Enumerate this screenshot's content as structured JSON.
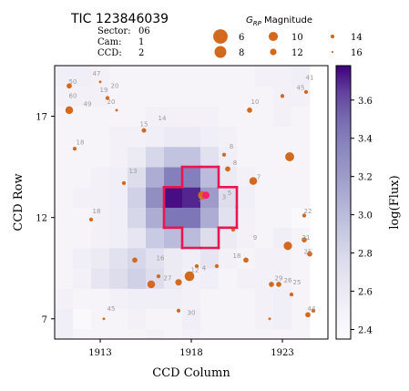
{
  "chart_data": {
    "type": "heatmap",
    "title": "TIC 123846039",
    "info": [
      {
        "label": "Sector:",
        "value": "06"
      },
      {
        "label": "Cam:",
        "value": "1"
      },
      {
        "label": "CCD:",
        "value": "2"
      }
    ],
    "xlabel": "CCD Column",
    "ylabel": "CCD Row",
    "xlim": [
      1910.5,
      1925.5
    ],
    "ylim": [
      6.0,
      19.5
    ],
    "x_ticks": [
      1913,
      1918,
      1923
    ],
    "y_ticks": [
      7,
      12,
      17
    ],
    "colorbar": {
      "label": "log(Flux)",
      "min": 2.35,
      "max": 3.78,
      "ticks": [
        2.4,
        2.6,
        2.8,
        3.0,
        3.2,
        3.4,
        3.6
      ]
    },
    "legend": {
      "title": "G_RP Magnitude",
      "entries": [
        "6",
        "8",
        "10",
        "12",
        "14",
        "16"
      ]
    },
    "aperture_pixels": [
      [
        1918,
        14
      ],
      [
        1919,
        14
      ],
      [
        1917,
        13
      ],
      [
        1918,
        13
      ],
      [
        1919,
        13
      ],
      [
        1920,
        13
      ],
      [
        1917,
        12
      ],
      [
        1918,
        12
      ],
      [
        1919,
        12
      ],
      [
        1920,
        12
      ],
      [
        1918,
        11
      ],
      [
        1919,
        11
      ]
    ],
    "target": {
      "x": 1918.8,
      "y": 13.1
    },
    "flux_grid": {
      "col_start": 1911,
      "row_start": 6,
      "rows": [
        [
          2.55,
          2.45,
          2.45,
          2.45,
          2.45,
          2.5,
          2.45,
          2.5,
          2.45,
          2.45,
          2.45,
          2.45,
          2.45,
          2.45
        ],
        [
          2.55,
          2.4,
          2.45,
          2.45,
          2.5,
          2.45,
          2.45,
          2.55,
          2.45,
          2.45,
          2.45,
          2.5,
          2.55,
          2.45
        ],
        [
          2.5,
          2.45,
          2.45,
          2.5,
          2.55,
          2.55,
          2.55,
          2.5,
          2.45,
          2.45,
          2.45,
          2.5,
          2.55,
          2.45
        ],
        [
          2.45,
          2.5,
          2.65,
          2.75,
          2.85,
          2.75,
          2.6,
          2.5,
          2.55,
          2.45,
          2.5,
          2.5,
          2.5,
          2.45
        ],
        [
          2.45,
          2.55,
          2.6,
          2.7,
          2.8,
          2.7,
          2.6,
          2.55,
          2.65,
          2.5,
          2.45,
          2.5,
          2.5,
          2.45
        ],
        [
          2.45,
          2.45,
          2.5,
          2.55,
          2.65,
          2.9,
          3.0,
          3.0,
          2.75,
          2.6,
          2.5,
          2.45,
          2.55,
          2.45
        ],
        [
          2.45,
          2.45,
          2.5,
          2.55,
          2.8,
          3.1,
          3.45,
          3.45,
          3.1,
          2.7,
          2.5,
          2.45,
          2.45,
          2.4
        ],
        [
          2.45,
          2.5,
          2.5,
          2.55,
          2.85,
          3.3,
          3.75,
          3.7,
          3.2,
          2.75,
          2.55,
          2.45,
          2.45,
          2.45
        ],
        [
          2.45,
          2.45,
          2.5,
          2.55,
          2.75,
          3.1,
          3.4,
          3.4,
          3.0,
          2.6,
          2.5,
          2.45,
          2.45,
          2.45
        ],
        [
          2.45,
          2.45,
          2.45,
          2.5,
          2.6,
          2.8,
          2.95,
          2.95,
          2.7,
          2.55,
          2.45,
          2.45,
          2.45,
          2.45
        ],
        [
          2.45,
          2.45,
          2.45,
          2.5,
          2.5,
          2.55,
          2.6,
          2.6,
          2.55,
          2.5,
          2.45,
          2.45,
          2.45,
          2.45
        ],
        [
          2.45,
          2.45,
          2.45,
          2.45,
          2.45,
          2.5,
          2.5,
          2.5,
          2.5,
          2.45,
          2.45,
          2.45,
          2.5,
          2.45
        ],
        [
          2.5,
          2.5,
          2.5,
          2.45,
          2.45,
          2.45,
          2.45,
          2.45,
          2.45,
          2.45,
          2.45,
          2.45,
          2.5,
          2.5
        ],
        [
          2.55,
          2.55,
          2.5,
          2.45,
          2.45,
          2.45,
          2.45,
          2.45,
          2.45,
          2.45,
          2.45,
          2.5,
          2.5,
          2.55
        ]
      ]
    },
    "stars": [
      {
        "x": 1918.6,
        "y": 13.1,
        "mag": 11.5
      },
      {
        "x": 1911.3,
        "y": 18.5,
        "mag": 14
      },
      {
        "x": 1911.3,
        "y": 17.3,
        "mag": 12
      },
      {
        "x": 1911.6,
        "y": 15.4,
        "mag": 15
      },
      {
        "x": 1913.0,
        "y": 18.7,
        "mag": 16
      },
      {
        "x": 1915.4,
        "y": 16.3,
        "mag": 14.5
      },
      {
        "x": 1913.4,
        "y": 17.9,
        "mag": 15
      },
      {
        "x": 1913.9,
        "y": 17.3,
        "mag": 16
      },
      {
        "x": 1914.3,
        "y": 13.7,
        "mag": 15
      },
      {
        "x": 1912.5,
        "y": 11.9,
        "mag": 15
      },
      {
        "x": 1914.9,
        "y": 9.9,
        "mag": 14
      },
      {
        "x": 1915.8,
        "y": 8.7,
        "mag": 12
      },
      {
        "x": 1916.2,
        "y": 9.1,
        "mag": 15
      },
      {
        "x": 1917.3,
        "y": 8.8,
        "mag": 13
      },
      {
        "x": 1917.9,
        "y": 9.1,
        "mag": 10.5
      },
      {
        "x": 1918.3,
        "y": 9.6,
        "mag": 15
      },
      {
        "x": 1913.2,
        "y": 7.0,
        "mag": 16
      },
      {
        "x": 1917.3,
        "y": 7.4,
        "mag": 15
      },
      {
        "x": 1919.4,
        "y": 9.6,
        "mag": 15
      },
      {
        "x": 1920.3,
        "y": 11.4,
        "mag": 15
      },
      {
        "x": 1921.0,
        "y": 9.9,
        "mag": 14
      },
      {
        "x": 1919.8,
        "y": 15.1,
        "mag": 15
      },
      {
        "x": 1920.0,
        "y": 14.4,
        "mag": 14
      },
      {
        "x": 1921.4,
        "y": 13.8,
        "mag": 12
      },
      {
        "x": 1921.2,
        "y": 17.3,
        "mag": 14
      },
      {
        "x": 1923.0,
        "y": 18.0,
        "mag": 15
      },
      {
        "x": 1924.3,
        "y": 18.2,
        "mag": 15
      },
      {
        "x": 1923.4,
        "y": 15.0,
        "mag": 11
      },
      {
        "x": 1924.2,
        "y": 12.1,
        "mag": 15
      },
      {
        "x": 1924.2,
        "y": 10.9,
        "mag": 14
      },
      {
        "x": 1923.3,
        "y": 10.6,
        "mag": 11.5
      },
      {
        "x": 1924.5,
        "y": 10.2,
        "mag": 14
      },
      {
        "x": 1922.4,
        "y": 8.7,
        "mag": 14
      },
      {
        "x": 1922.8,
        "y": 8.7,
        "mag": 14
      },
      {
        "x": 1923.5,
        "y": 8.2,
        "mag": 15
      },
      {
        "x": 1924.4,
        "y": 7.2,
        "mag": 14
      },
      {
        "x": 1924.7,
        "y": 7.4,
        "mag": 15
      },
      {
        "x": 1922.3,
        "y": 7.0,
        "mag": 16
      }
    ],
    "star_labels": [
      {
        "text": "47",
        "x": 1912.8,
        "y": 19.0
      },
      {
        "text": "50",
        "x": 1911.5,
        "y": 18.6
      },
      {
        "text": "60",
        "x": 1911.5,
        "y": 17.9
      },
      {
        "text": "49",
        "x": 1912.3,
        "y": 17.5
      },
      {
        "text": "19",
        "x": 1913.2,
        "y": 18.2
      },
      {
        "text": "20",
        "x": 1913.8,
        "y": 18.4
      },
      {
        "text": "20",
        "x": 1913.6,
        "y": 17.6
      },
      {
        "text": "14",
        "x": 1916.4,
        "y": 16.8
      },
      {
        "text": "15",
        "x": 1915.4,
        "y": 16.5
      },
      {
        "text": "18",
        "x": 1911.9,
        "y": 15.6
      },
      {
        "text": "13",
        "x": 1914.8,
        "y": 14.2
      },
      {
        "text": "18",
        "x": 1912.8,
        "y": 12.2
      },
      {
        "text": "10",
        "x": 1921.5,
        "y": 17.6
      },
      {
        "text": "41",
        "x": 1924.5,
        "y": 18.8
      },
      {
        "text": "45",
        "x": 1924.0,
        "y": 18.3
      },
      {
        "text": "8",
        "x": 1920.2,
        "y": 15.4
      },
      {
        "text": "8",
        "x": 1920.4,
        "y": 14.6
      },
      {
        "text": "7",
        "x": 1921.7,
        "y": 13.9
      },
      {
        "text": "5",
        "x": 1920.1,
        "y": 13.1
      },
      {
        "text": "3",
        "x": 1918.5,
        "y": 12.8
      },
      {
        "text": "3",
        "x": 1919.8,
        "y": 12.9
      },
      {
        "text": "22",
        "x": 1924.4,
        "y": 12.2
      },
      {
        "text": "9",
        "x": 1921.5,
        "y": 10.9
      },
      {
        "text": "21",
        "x": 1924.3,
        "y": 10.9
      },
      {
        "text": "18",
        "x": 1920.5,
        "y": 10.0
      },
      {
        "text": "25",
        "x": 1924.4,
        "y": 10.2
      },
      {
        "text": "16",
        "x": 1916.3,
        "y": 9.9
      },
      {
        "text": "4",
        "x": 1918.7,
        "y": 9.4
      },
      {
        "text": "12",
        "x": 1918.2,
        "y": 9.3
      },
      {
        "text": "27",
        "x": 1916.7,
        "y": 8.9
      },
      {
        "text": "29",
        "x": 1922.8,
        "y": 8.9
      },
      {
        "text": "26",
        "x": 1923.3,
        "y": 8.8
      },
      {
        "text": "25",
        "x": 1923.8,
        "y": 8.7
      },
      {
        "text": "45",
        "x": 1913.6,
        "y": 7.4
      },
      {
        "text": "30",
        "x": 1918.0,
        "y": 7.2
      },
      {
        "text": "44",
        "x": 1924.6,
        "y": 7.4
      }
    ]
  },
  "colors": {
    "aperture": "#e8174f",
    "target": "#ff1f6a",
    "star": "#d2691e",
    "star_label": "#9a9a9a",
    "cmap_low": "#fcfbfd",
    "cmap_high": "#3f007d"
  }
}
